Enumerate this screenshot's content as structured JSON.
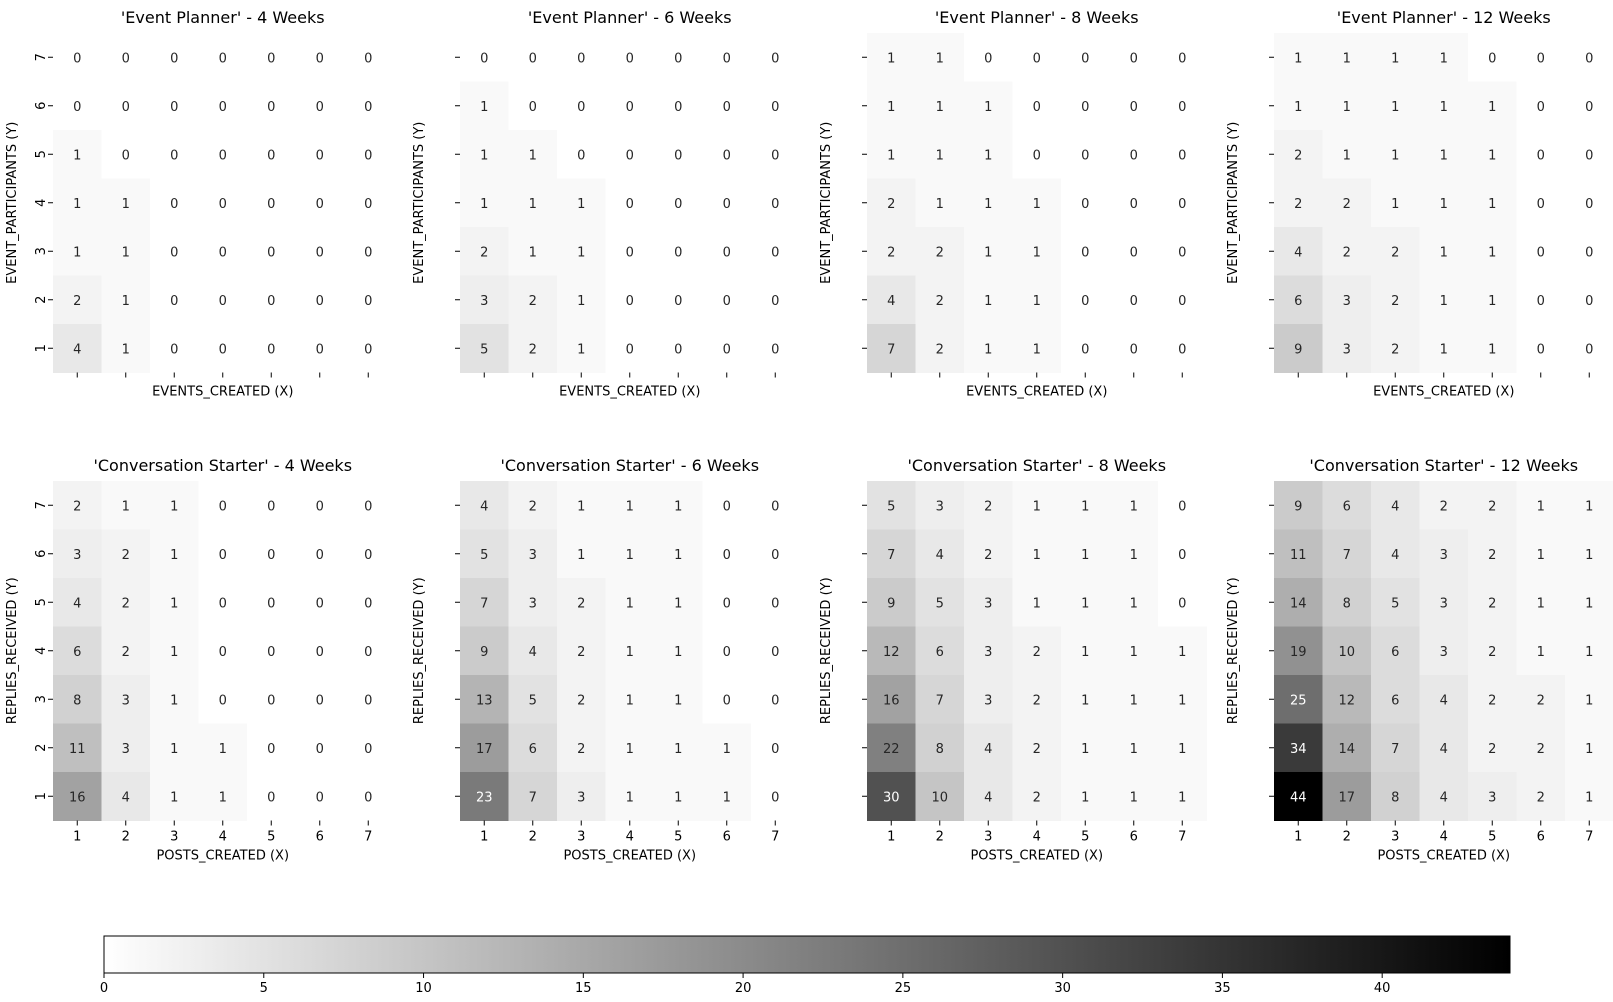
{
  "colorbar": {
    "min": 0,
    "max": 44,
    "ticks": [
      0,
      5,
      10,
      15,
      20,
      25,
      30,
      35,
      40
    ],
    "color_low": "#ffffff",
    "color_high": "#000000"
  },
  "chart_data": [
    {
      "type": "heatmap",
      "title": "'Event Planner' - 4 Weeks",
      "xlabel": "EVENTS_CREATED (X)",
      "ylabel": "EVENT_PARTICIPANTS (Y)",
      "x_ticks": [
        "1",
        "2",
        "3",
        "4",
        "5",
        "6",
        "7"
      ],
      "y_ticks": [
        "7",
        "6",
        "5",
        "4",
        "3",
        "2",
        "1"
      ],
      "show_x_tick_labels": false,
      "show_y_tick_labels": true,
      "values": [
        [
          0,
          0,
          0,
          0,
          0,
          0,
          0
        ],
        [
          0,
          0,
          0,
          0,
          0,
          0,
          0
        ],
        [
          1,
          0,
          0,
          0,
          0,
          0,
          0
        ],
        [
          1,
          1,
          0,
          0,
          0,
          0,
          0
        ],
        [
          1,
          1,
          0,
          0,
          0,
          0,
          0
        ],
        [
          2,
          1,
          0,
          0,
          0,
          0,
          0
        ],
        [
          4,
          1,
          0,
          0,
          0,
          0,
          0
        ]
      ]
    },
    {
      "type": "heatmap",
      "title": "'Event Planner' - 6 Weeks",
      "xlabel": "EVENTS_CREATED (X)",
      "ylabel": "EVENT_PARTICIPANTS (Y)",
      "x_ticks": [
        "1",
        "2",
        "3",
        "4",
        "5",
        "6",
        "7"
      ],
      "y_ticks": [
        "7",
        "6",
        "5",
        "4",
        "3",
        "2",
        "1"
      ],
      "show_x_tick_labels": false,
      "show_y_tick_labels": false,
      "values": [
        [
          0,
          0,
          0,
          0,
          0,
          0,
          0
        ],
        [
          1,
          0,
          0,
          0,
          0,
          0,
          0
        ],
        [
          1,
          1,
          0,
          0,
          0,
          0,
          0
        ],
        [
          1,
          1,
          1,
          0,
          0,
          0,
          0
        ],
        [
          2,
          1,
          1,
          0,
          0,
          0,
          0
        ],
        [
          3,
          2,
          1,
          0,
          0,
          0,
          0
        ],
        [
          5,
          2,
          1,
          0,
          0,
          0,
          0
        ]
      ]
    },
    {
      "type": "heatmap",
      "title": "'Event Planner' - 8 Weeks",
      "xlabel": "EVENTS_CREATED (X)",
      "ylabel": "EVENT_PARTICIPANTS (Y)",
      "x_ticks": [
        "1",
        "2",
        "3",
        "4",
        "5",
        "6",
        "7"
      ],
      "y_ticks": [
        "7",
        "6",
        "5",
        "4",
        "3",
        "2",
        "1"
      ],
      "show_x_tick_labels": false,
      "show_y_tick_labels": false,
      "values": [
        [
          1,
          1,
          0,
          0,
          0,
          0,
          0
        ],
        [
          1,
          1,
          1,
          0,
          0,
          0,
          0
        ],
        [
          1,
          1,
          1,
          0,
          0,
          0,
          0
        ],
        [
          2,
          1,
          1,
          1,
          0,
          0,
          0
        ],
        [
          2,
          2,
          1,
          1,
          0,
          0,
          0
        ],
        [
          4,
          2,
          1,
          1,
          0,
          0,
          0
        ],
        [
          7,
          2,
          1,
          1,
          0,
          0,
          0
        ]
      ]
    },
    {
      "type": "heatmap",
      "title": "'Event Planner' - 12 Weeks",
      "xlabel": "EVENTS_CREATED (X)",
      "ylabel": "EVENT_PARTICIPANTS (Y)",
      "x_ticks": [
        "1",
        "2",
        "3",
        "4",
        "5",
        "6",
        "7"
      ],
      "y_ticks": [
        "7",
        "6",
        "5",
        "4",
        "3",
        "2",
        "1"
      ],
      "show_x_tick_labels": false,
      "show_y_tick_labels": false,
      "values": [
        [
          1,
          1,
          1,
          1,
          0,
          0,
          0
        ],
        [
          1,
          1,
          1,
          1,
          1,
          0,
          0
        ],
        [
          2,
          1,
          1,
          1,
          1,
          0,
          0
        ],
        [
          2,
          2,
          1,
          1,
          1,
          0,
          0
        ],
        [
          4,
          2,
          2,
          1,
          1,
          0,
          0
        ],
        [
          6,
          3,
          2,
          1,
          1,
          0,
          0
        ],
        [
          9,
          3,
          2,
          1,
          1,
          0,
          0
        ]
      ]
    },
    {
      "type": "heatmap",
      "title": "'Conversation Starter' - 4 Weeks",
      "xlabel": "POSTS_CREATED (X)",
      "ylabel": "REPLIES_RECEIVED (Y)",
      "x_ticks": [
        "1",
        "2",
        "3",
        "4",
        "5",
        "6",
        "7"
      ],
      "y_ticks": [
        "7",
        "6",
        "5",
        "4",
        "3",
        "2",
        "1"
      ],
      "show_x_tick_labels": true,
      "show_y_tick_labels": true,
      "values": [
        [
          2,
          1,
          1,
          0,
          0,
          0,
          0
        ],
        [
          3,
          2,
          1,
          0,
          0,
          0,
          0
        ],
        [
          4,
          2,
          1,
          0,
          0,
          0,
          0
        ],
        [
          6,
          2,
          1,
          0,
          0,
          0,
          0
        ],
        [
          8,
          3,
          1,
          0,
          0,
          0,
          0
        ],
        [
          11,
          3,
          1,
          1,
          0,
          0,
          0
        ],
        [
          16,
          4,
          1,
          1,
          0,
          0,
          0
        ]
      ]
    },
    {
      "type": "heatmap",
      "title": "'Conversation Starter' - 6 Weeks",
      "xlabel": "POSTS_CREATED (X)",
      "ylabel": "REPLIES_RECEIVED (Y)",
      "x_ticks": [
        "1",
        "2",
        "3",
        "4",
        "5",
        "6",
        "7"
      ],
      "y_ticks": [
        "7",
        "6",
        "5",
        "4",
        "3",
        "2",
        "1"
      ],
      "show_x_tick_labels": true,
      "show_y_tick_labels": false,
      "values": [
        [
          4,
          2,
          1,
          1,
          1,
          0,
          0
        ],
        [
          5,
          3,
          1,
          1,
          1,
          0,
          0
        ],
        [
          7,
          3,
          2,
          1,
          1,
          0,
          0
        ],
        [
          9,
          4,
          2,
          1,
          1,
          0,
          0
        ],
        [
          13,
          5,
          2,
          1,
          1,
          0,
          0
        ],
        [
          17,
          6,
          2,
          1,
          1,
          1,
          0
        ],
        [
          23,
          7,
          3,
          1,
          1,
          1,
          0
        ]
      ]
    },
    {
      "type": "heatmap",
      "title": "'Conversation Starter' - 8 Weeks",
      "xlabel": "POSTS_CREATED (X)",
      "ylabel": "REPLIES_RECEIVED (Y)",
      "x_ticks": [
        "1",
        "2",
        "3",
        "4",
        "5",
        "6",
        "7"
      ],
      "y_ticks": [
        "7",
        "6",
        "5",
        "4",
        "3",
        "2",
        "1"
      ],
      "show_x_tick_labels": true,
      "show_y_tick_labels": false,
      "values": [
        [
          5,
          3,
          2,
          1,
          1,
          1,
          0
        ],
        [
          7,
          4,
          2,
          1,
          1,
          1,
          0
        ],
        [
          9,
          5,
          3,
          1,
          1,
          1,
          0
        ],
        [
          12,
          6,
          3,
          2,
          1,
          1,
          1
        ],
        [
          16,
          7,
          3,
          2,
          1,
          1,
          1
        ],
        [
          22,
          8,
          4,
          2,
          1,
          1,
          1
        ],
        [
          30,
          10,
          4,
          2,
          1,
          1,
          1
        ]
      ]
    },
    {
      "type": "heatmap",
      "title": "'Conversation Starter' - 12 Weeks",
      "xlabel": "POSTS_CREATED (X)",
      "ylabel": "REPLIES_RECEIVED (Y)",
      "x_ticks": [
        "1",
        "2",
        "3",
        "4",
        "5",
        "6",
        "7"
      ],
      "y_ticks": [
        "7",
        "6",
        "5",
        "4",
        "3",
        "2",
        "1"
      ],
      "show_x_tick_labels": true,
      "show_y_tick_labels": false,
      "values": [
        [
          9,
          6,
          4,
          2,
          2,
          1,
          1
        ],
        [
          11,
          7,
          4,
          3,
          2,
          1,
          1
        ],
        [
          14,
          8,
          5,
          3,
          2,
          1,
          1
        ],
        [
          19,
          10,
          6,
          3,
          2,
          1,
          1
        ],
        [
          25,
          12,
          6,
          4,
          2,
          2,
          1
        ],
        [
          34,
          14,
          7,
          4,
          2,
          2,
          1
        ],
        [
          44,
          17,
          8,
          4,
          3,
          2,
          1
        ]
      ]
    }
  ]
}
